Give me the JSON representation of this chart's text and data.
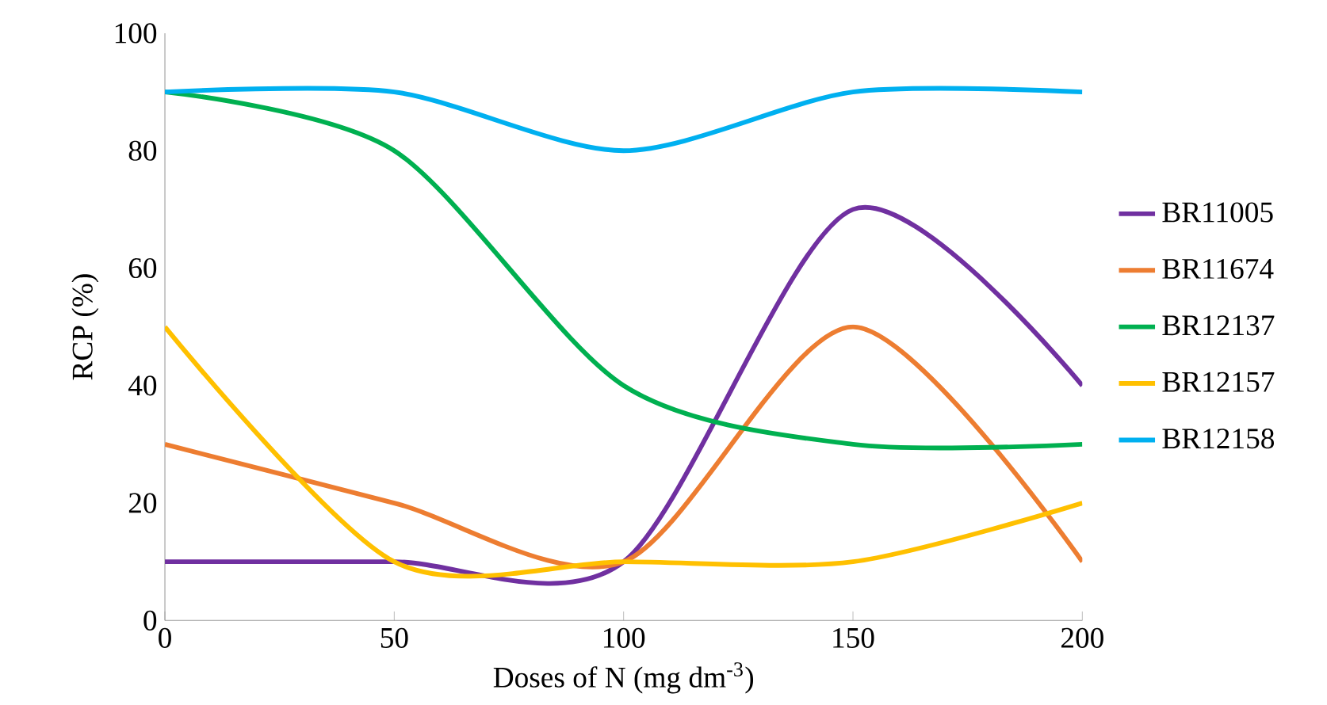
{
  "chart_data": {
    "type": "line",
    "xlabel": "Doses of N (mg dm$^{-3}$)",
    "ylabel": "RCP (%)",
    "x": [
      0,
      50,
      100,
      150,
      200
    ],
    "series": [
      {
        "name": "BR11005",
        "color": "#7030a0",
        "values": [
          10,
          10,
          10,
          70,
          40
        ]
      },
      {
        "name": "BR11674",
        "color": "#ed7d31",
        "values": [
          30,
          20,
          10,
          50,
          10
        ]
      },
      {
        "name": "BR12137",
        "color": "#00b050",
        "values": [
          90,
          80,
          40,
          30,
          30
        ]
      },
      {
        "name": "BR12157",
        "color": "#ffc000",
        "values": [
          50,
          10,
          10,
          10,
          20
        ]
      },
      {
        "name": "BR12158",
        "color": "#00b0f0",
        "values": [
          90,
          90,
          80,
          90,
          90
        ]
      }
    ],
    "xlim": [
      0,
      200
    ],
    "xticks": [
      0,
      50,
      100,
      150,
      200
    ],
    "ylim": [
      0,
      100
    ],
    "yticks": [
      0,
      20,
      40,
      60,
      80,
      100
    ],
    "grid": false,
    "legend": "right",
    "marker": "none",
    "line_style": "solid"
  }
}
